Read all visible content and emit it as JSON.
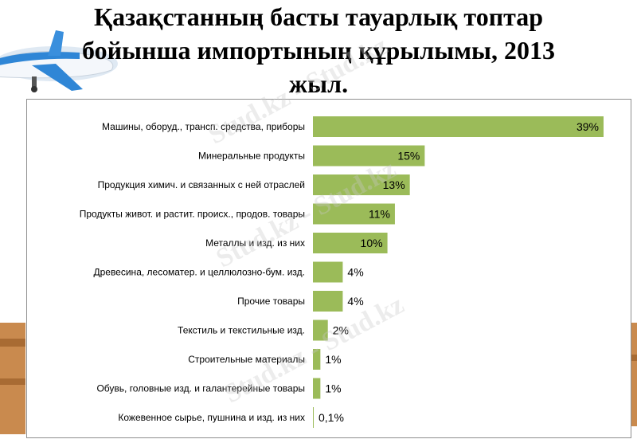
{
  "slide": {
    "title_lines": [
      "Қазақстанның басты тауарлық топтар",
      "бойынша импортының құрылымы, 2013",
      "жыл."
    ],
    "watermark": "Stud.kz - Stud.kz"
  },
  "colors": {
    "bar": "#9bbb59",
    "text": "#000000",
    "frame": "#8f8f8f"
  },
  "chart_data": {
    "type": "bar",
    "orientation": "horizontal",
    "categories": [
      "Машины, оборуд., трансп. средства, приборы",
      "Минеральные продукты",
      "Продукция химич. и связанных с ней отраслей",
      "Продукты живот. и растит. происх., продов. товары",
      "Металлы и изд. из них",
      "Древесина, лесоматер. и целлюлозно-бум. изд.",
      "Прочие товары",
      "Текстиль и текстильные изд.",
      "Строительные материалы",
      "Обувь, головные изд. и галантерейные товары",
      "Кожевенное сырье, пушнина и изд. из них"
    ],
    "values": [
      39,
      15,
      13,
      11,
      10,
      4,
      4,
      2,
      1,
      1,
      0.1
    ],
    "data_labels": [
      "39%",
      "15%",
      "13%",
      "11%",
      "10%",
      "4%",
      "4%",
      "2%",
      "1%",
      "1%",
      "0,1%"
    ],
    "xlim": [
      0,
      39
    ],
    "grid": false,
    "legend": "none"
  }
}
